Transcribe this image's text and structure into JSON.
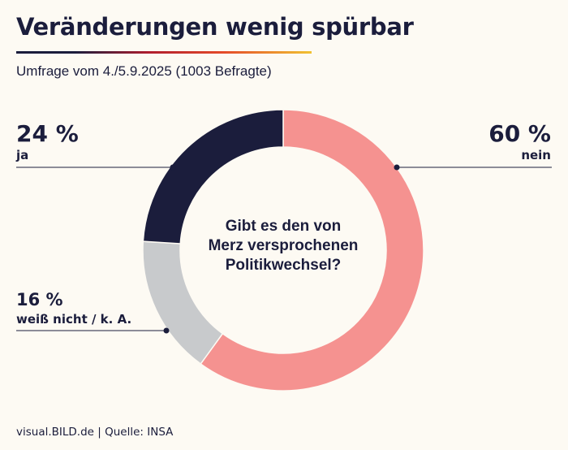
{
  "header": {
    "title": "Veränderungen wenig spürbar",
    "subtitle": "Umfrage vom 4./5.9.2025 (1003 Befragte)"
  },
  "footer": {
    "source": "visual.BILD.de | Quelle: INSA"
  },
  "chart_data": {
    "type": "pie",
    "variant": "donut",
    "title": "Veränderungen wenig spürbar",
    "center_label": [
      "Gibt es den von",
      "Merz versprochenen",
      "Politikwechsel?"
    ],
    "slices": [
      {
        "label": "nein",
        "value": 60,
        "display": "60 %",
        "color": "#f59290"
      },
      {
        "label": "weiß nicht / k. A.",
        "value": 16,
        "display": "16 %",
        "color": "#c8cacc"
      },
      {
        "label": "ja",
        "value": 24,
        "display": "24 %",
        "color": "#1b1d3c"
      }
    ]
  }
}
